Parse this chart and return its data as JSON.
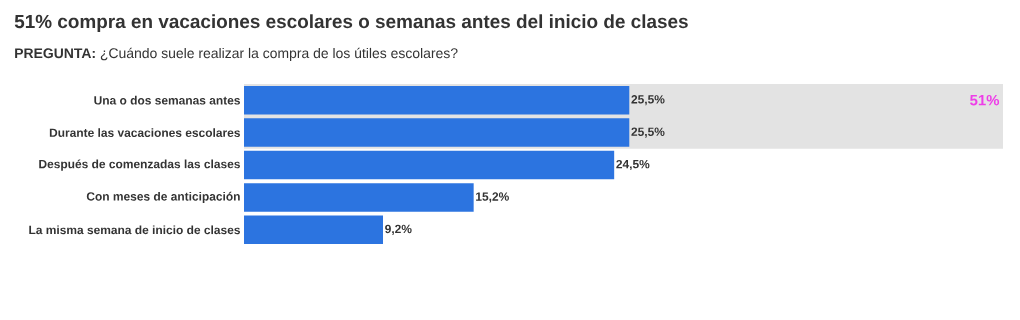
{
  "chart_data": {
    "type": "bar",
    "orientation": "horizontal",
    "title": "51% compra en vacaciones escolares o semanas antes del inicio de clases",
    "subtitle": "**PREGUNTA:** ¿Cuándo suele realizar la compra de los útiles escolares?",
    "categories": [
      "Una o dos semanas antes",
      "Durante las vacaciones escolares",
      "Después de comenzadas las clases",
      "Con meses de anticipación",
      "La misma semana de inicio de clases"
    ],
    "values": [
      25.5,
      25.5,
      24.5,
      15.2,
      9.2
    ],
    "value_labels": [
      "25,5%",
      "25,5%",
      "24,5%",
      "15,2%",
      "9,2%"
    ],
    "color": "#2c74e0",
    "bands": [
      {
        "axis": "y",
        "from": "Una o dos semanas antes",
        "to": "Durante las vacaciones escolares",
        "label": "51%",
        "color": "#e3e3e3"
      }
    ]
  }
}
